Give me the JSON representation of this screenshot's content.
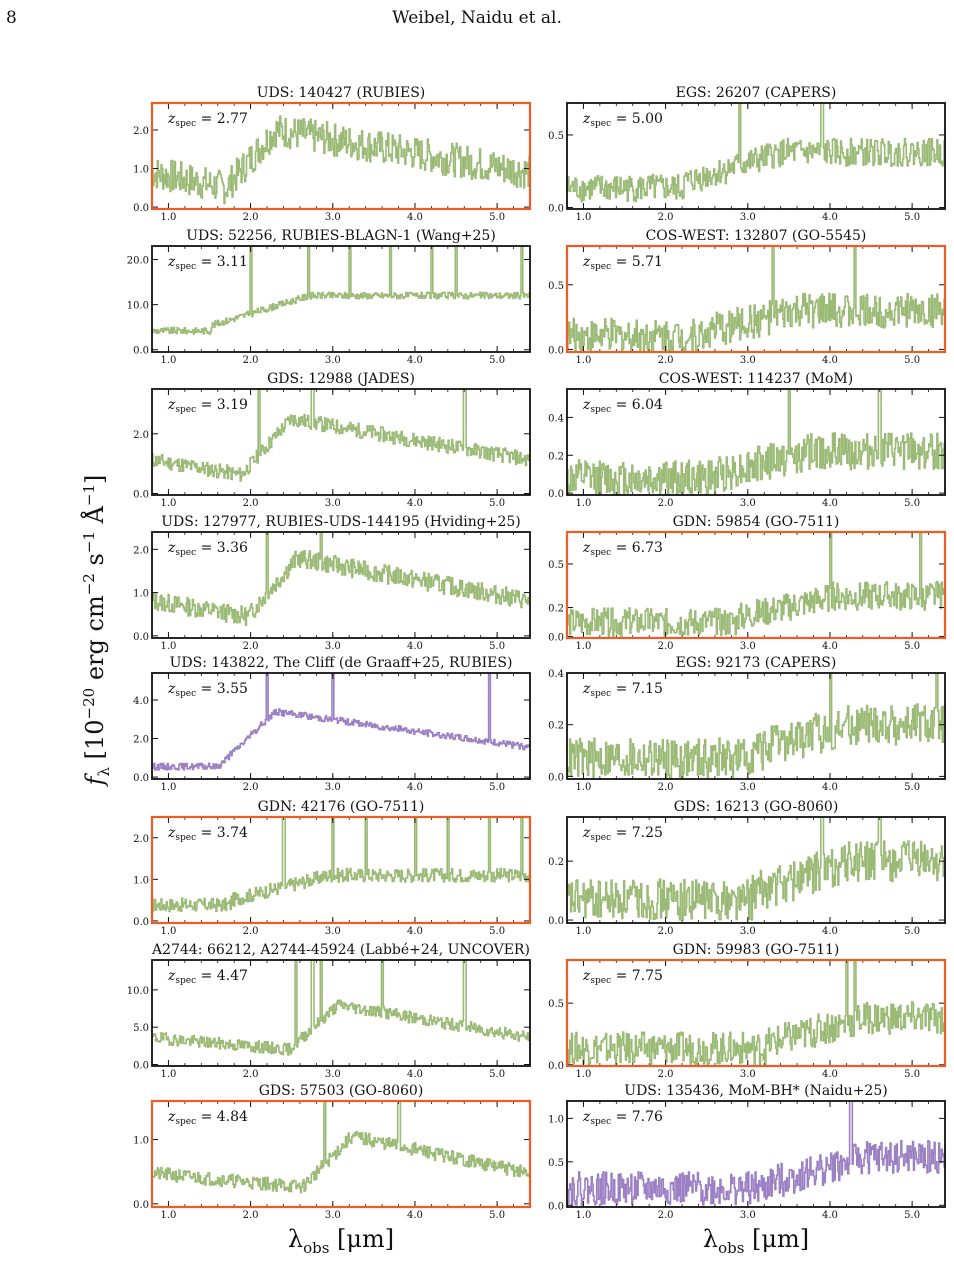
{
  "page": {
    "number": "8",
    "running_header": "Weibel, Naidu et al."
  },
  "figure": {
    "ylabel": "f_λ [10^−20 erg cm^−2 s^−1 Å^−1]",
    "xlabel": "λ_obs [μm]",
    "colors": {
      "green": "#9aba76",
      "purple": "#9b80c4",
      "highlight": "#f05a24",
      "frame": "#111111"
    }
  },
  "chart_data": [
    {
      "type": "line",
      "title": "UDS: 140427 (RUBIES)",
      "annotation": "z_spec = 2.77",
      "z_spec": 2.77,
      "highlight": true,
      "color": "green",
      "xlim": [
        0.8,
        5.4
      ],
      "ylim": [
        -0.05,
        2.7
      ],
      "xticks": [
        1.0,
        2.0,
        3.0,
        4.0,
        5.0
      ],
      "yticks": [
        0.0,
        1.0,
        2.0
      ],
      "peak": 2.0,
      "shape": "hump",
      "noise": 0.22,
      "lines": []
    },
    {
      "type": "line",
      "title": "EGS: 26207 (CAPERS)",
      "annotation": "z_spec = 5.00",
      "z_spec": 5.0,
      "highlight": false,
      "color": "green",
      "xlim": [
        0.8,
        5.4
      ],
      "ylim": [
        -0.01,
        0.72
      ],
      "xticks": [
        1.0,
        2.0,
        3.0,
        4.0,
        5.0
      ],
      "yticks": [
        0.0,
        0.5
      ],
      "peak": 0.38,
      "shape": "rise",
      "noise": 0.25,
      "lines": [
        2.9,
        3.9
      ]
    },
    {
      "type": "line",
      "title": "UDS: 52256, RUBIES-BLAGN-1 (Wang+25)",
      "annotation": "z_spec = 3.11",
      "z_spec": 3.11,
      "highlight": false,
      "color": "green",
      "xlim": [
        0.8,
        5.4
      ],
      "ylim": [
        -0.5,
        23
      ],
      "xticks": [
        1.0,
        2.0,
        3.0,
        4.0,
        5.0
      ],
      "yticks": [
        0.0,
        10.0,
        20.0
      ],
      "peak": 12,
      "shape": "rise",
      "noise": 0.06,
      "lines": [
        2.0,
        2.7,
        3.2,
        3.7,
        4.2,
        4.5,
        5.3
      ]
    },
    {
      "type": "line",
      "title": "COS-WEST: 132807 (GO-5545)",
      "annotation": "z_spec = 5.71",
      "z_spec": 5.71,
      "highlight": true,
      "color": "green",
      "xlim": [
        0.8,
        5.4
      ],
      "ylim": [
        -0.02,
        0.8
      ],
      "xticks": [
        1.0,
        2.0,
        3.0,
        4.0,
        5.0
      ],
      "yticks": [
        0.0,
        0.5
      ],
      "peak": 0.3,
      "shape": "rise",
      "noise": 0.45,
      "lines": [
        3.3,
        4.3
      ]
    },
    {
      "type": "line",
      "title": "GDS: 12988 (JADES)",
      "annotation": "z_spec = 3.19",
      "z_spec": 3.19,
      "highlight": false,
      "color": "green",
      "xlim": [
        0.8,
        5.4
      ],
      "ylim": [
        -0.05,
        3.5
      ],
      "xticks": [
        1.0,
        2.0,
        3.0,
        4.0,
        5.0
      ],
      "yticks": [
        0.0,
        2.0
      ],
      "peak": 2.5,
      "shape": "hump",
      "noise": 0.1,
      "lines": [
        2.1,
        2.75,
        4.6
      ]
    },
    {
      "type": "line",
      "title": "COS-WEST: 114237 (MoM)",
      "annotation": "z_spec = 6.04",
      "z_spec": 6.04,
      "highlight": false,
      "color": "green",
      "xlim": [
        0.8,
        5.4
      ],
      "ylim": [
        -0.01,
        0.55
      ],
      "xticks": [
        1.0,
        2.0,
        3.0,
        4.0,
        5.0
      ],
      "yticks": [
        0.0,
        0.2,
        0.4
      ],
      "peak": 0.22,
      "shape": "rise",
      "noise": 0.45,
      "lines": [
        3.5,
        4.6
      ]
    },
    {
      "type": "line",
      "title": "UDS: 127977, RUBIES-UDS-144195 (Hviding+25)",
      "annotation": "z_spec = 3.36",
      "z_spec": 3.36,
      "highlight": false,
      "color": "green",
      "xlim": [
        0.8,
        5.4
      ],
      "ylim": [
        -0.05,
        2.4
      ],
      "xticks": [
        1.0,
        2.0,
        3.0,
        4.0,
        5.0
      ],
      "yticks": [
        0.0,
        1.0,
        2.0
      ],
      "peak": 1.8,
      "shape": "hump",
      "noise": 0.12,
      "lines": [
        2.2,
        2.85
      ]
    },
    {
      "type": "line",
      "title": "GDN: 59854 (GO-7511)",
      "annotation": "z_spec = 6.73",
      "z_spec": 6.73,
      "highlight": true,
      "color": "green",
      "xlim": [
        0.8,
        5.4
      ],
      "ylim": [
        -0.01,
        0.72
      ],
      "xticks": [
        1.0,
        2.0,
        3.0,
        4.0,
        5.0
      ],
      "yticks": [
        0.0,
        0.2,
        0.5
      ],
      "peak": 0.28,
      "shape": "rise",
      "noise": 0.35,
      "lines": [
        4.0,
        5.1
      ]
    },
    {
      "type": "line",
      "title": "UDS: 143822, The Cliff (de Graaff+25, RUBIES)",
      "annotation": "z_spec = 3.55",
      "z_spec": 3.55,
      "highlight": false,
      "color": "purple",
      "xlim": [
        0.8,
        5.4
      ],
      "ylim": [
        -0.1,
        5.4
      ],
      "xticks": [
        1.0,
        2.0,
        3.0,
        4.0,
        5.0
      ],
      "yticks": [
        0.0,
        2.0,
        4.0
      ],
      "peak": 3.4,
      "shape": "cliff",
      "noise": 0.05,
      "lines": [
        2.2,
        3.0,
        4.9
      ]
    },
    {
      "type": "line",
      "title": "EGS: 92173 (CAPERS)",
      "annotation": "z_spec = 7.15",
      "z_spec": 7.15,
      "highlight": false,
      "color": "green",
      "xlim": [
        0.8,
        5.4
      ],
      "ylim": [
        -0.01,
        0.4
      ],
      "xticks": [
        1.0,
        2.0,
        3.0,
        4.0,
        5.0
      ],
      "yticks": [
        0.0,
        0.2,
        0.4
      ],
      "peak": 0.2,
      "shape": "rise",
      "noise": 0.4,
      "lines": [
        4.0,
        5.3
      ]
    },
    {
      "type": "line",
      "title": "GDN: 42176 (GO-7511)",
      "annotation": "z_spec = 3.74",
      "z_spec": 3.74,
      "highlight": true,
      "color": "green",
      "xlim": [
        0.8,
        5.4
      ],
      "ylim": [
        -0.05,
        2.5
      ],
      "xticks": [
        1.0,
        2.0,
        3.0,
        4.0,
        5.0
      ],
      "yticks": [
        0.0,
        1.0,
        2.0
      ],
      "peak": 1.1,
      "shape": "rise",
      "noise": 0.15,
      "lines": [
        2.4,
        3.0,
        3.4,
        4.0,
        4.4,
        4.9,
        5.3
      ]
    },
    {
      "type": "line",
      "title": "GDS: 16213 (GO-8060)",
      "annotation": "z_spec = 7.25",
      "z_spec": 7.25,
      "highlight": false,
      "color": "green",
      "xlim": [
        0.8,
        5.4
      ],
      "ylim": [
        -0.01,
        0.35
      ],
      "xticks": [
        1.0,
        2.0,
        3.0,
        4.0,
        5.0
      ],
      "yticks": [
        0.0,
        0.2
      ],
      "peak": 0.2,
      "shape": "rise",
      "noise": 0.35,
      "lines": [
        3.9,
        4.6
      ]
    },
    {
      "type": "line",
      "title": "A2744: 66212, A2744-45924 (Labbé+24, UNCOVER)",
      "annotation": "z_spec = 4.47",
      "z_spec": 4.47,
      "highlight": false,
      "color": "green",
      "xlim": [
        0.8,
        5.4
      ],
      "ylim": [
        -0.2,
        14
      ],
      "xticks": [
        1.0,
        2.0,
        3.0,
        4.0,
        5.0
      ],
      "yticks": [
        0.0,
        5.0,
        10.0
      ],
      "peak": 8,
      "shape": "hump",
      "noise": 0.1,
      "lines": [
        2.55,
        2.75,
        2.85,
        3.6,
        4.6
      ]
    },
    {
      "type": "line",
      "title": "GDN: 59983 (GO-7511)",
      "annotation": "z_spec = 7.75",
      "z_spec": 7.75,
      "highlight": true,
      "color": "green",
      "xlim": [
        0.8,
        5.4
      ],
      "ylim": [
        -0.01,
        0.85
      ],
      "xticks": [
        1.0,
        2.0,
        3.0,
        4.0,
        5.0
      ],
      "yticks": [
        0.0,
        0.5
      ],
      "peak": 0.38,
      "shape": "rise",
      "noise": 0.35,
      "lines": [
        4.2,
        4.3
      ]
    },
    {
      "type": "line",
      "title": "GDS: 57503 (GO-8060)",
      "annotation": "z_spec = 4.84",
      "z_spec": 4.84,
      "highlight": true,
      "color": "green",
      "xlim": [
        0.8,
        5.4
      ],
      "ylim": [
        -0.05,
        1.6
      ],
      "xticks": [
        1.0,
        2.0,
        3.0,
        4.0,
        5.0
      ],
      "yticks": [
        0.0,
        1.0
      ],
      "peak": 1.05,
      "shape": "hump",
      "noise": 0.1,
      "lines": [
        2.9,
        3.8
      ]
    },
    {
      "type": "line",
      "title": "UDS: 135436, MoM-BH* (Naidu+25)",
      "annotation": "z_spec = 7.76",
      "z_spec": 7.76,
      "highlight": false,
      "color": "purple",
      "xlim": [
        0.8,
        5.4
      ],
      "ylim": [
        -0.02,
        1.2
      ],
      "xticks": [
        1.0,
        2.0,
        3.0,
        4.0,
        5.0
      ],
      "yticks": [
        0.0,
        0.5,
        1.0
      ],
      "peak": 0.55,
      "shape": "rise",
      "noise": 0.35,
      "lines": [
        4.25
      ]
    }
  ]
}
